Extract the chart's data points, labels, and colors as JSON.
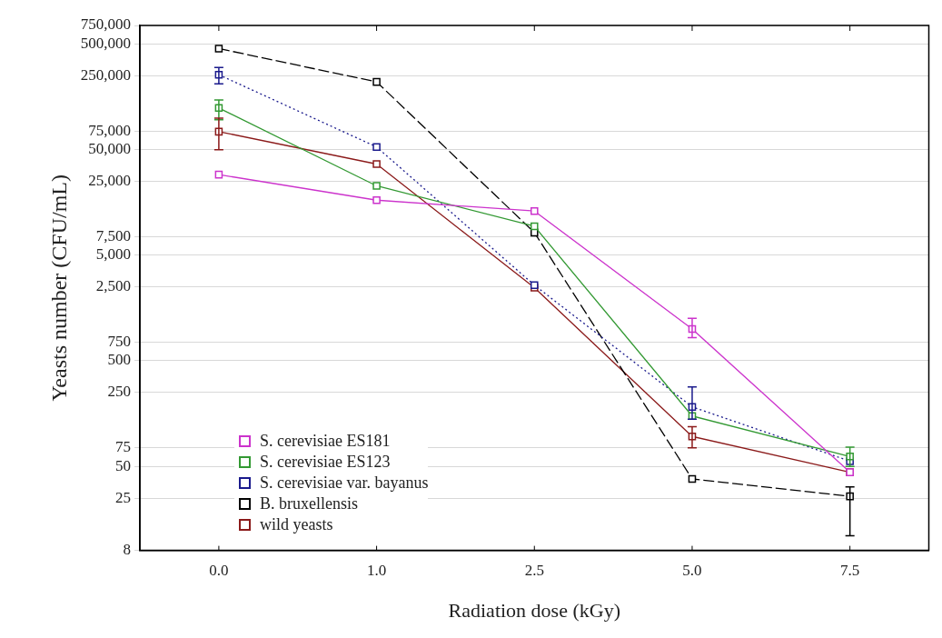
{
  "chart_data": {
    "type": "line",
    "xlabel": "Radiation dose (kGy)",
    "ylabel": "Yeasts number (CFU/mL)",
    "categories": [
      "0.0",
      "1.0",
      "2.5",
      "5.0",
      "7.5"
    ],
    "log": "y",
    "ylim": [
      8,
      750000
    ],
    "yticks": [
      {
        "value": 8,
        "label": "8"
      },
      {
        "value": 25,
        "label": "25"
      },
      {
        "value": 50,
        "label": "50"
      },
      {
        "value": 75,
        "label": "75"
      },
      {
        "value": 250,
        "label": "250"
      },
      {
        "value": 500,
        "label": "500"
      },
      {
        "value": 750,
        "label": "750"
      },
      {
        "value": 2500,
        "label": "2,500"
      },
      {
        "value": 5000,
        "label": "5,000"
      },
      {
        "value": 7500,
        "label": "7,500"
      },
      {
        "value": 25000,
        "label": "25,000"
      },
      {
        "value": 50000,
        "label": "50,000"
      },
      {
        "value": 75000,
        "label": "75,000"
      },
      {
        "value": 250000,
        "label": "250,000"
      },
      {
        "value": 500000,
        "label": "500,000"
      },
      {
        "value": 750000,
        "label": "750,000"
      }
    ],
    "grid": "y",
    "legend": "bottom left",
    "marker": "square",
    "series": [
      {
        "name": "S. cerevisiae ES181",
        "color": "#cc33cc",
        "line_style": "solid",
        "values": [
          29000,
          16600,
          13100,
          1000,
          44
        ],
        "errors": [
          null,
          null,
          null,
          [
            830,
            1260
          ],
          null
        ]
      },
      {
        "name": "S. cerevisiae ES123",
        "color": "#339933",
        "line_style": "solid",
        "values": [
          124000,
          22700,
          9400,
          150,
          62
        ],
        "errors": [
          [
            96000,
            148000
          ],
          null,
          null,
          null,
          [
            50,
            76
          ]
        ]
      },
      {
        "name": "S. cerevisiae var. bayanus",
        "color": "#1a1a8c",
        "line_style": "dotted",
        "values": [
          256000,
          53000,
          2600,
          183,
          56
        ],
        "errors": [
          [
            210000,
            300000
          ],
          null,
          null,
          [
            140,
            283
          ],
          null
        ]
      },
      {
        "name": "B. bruxellensis",
        "color": "#000000",
        "line_style": "dashed",
        "values": [
          453000,
          219000,
          8200,
          38,
          26
        ],
        "errors": [
          null,
          null,
          null,
          null,
          [
            11,
            32
          ]
        ]
      },
      {
        "name": "wild yeasts",
        "color": "#8b1a1a",
        "line_style": "solid",
        "values": [
          74000,
          36500,
          2460,
          96,
          44
        ],
        "errors": [
          [
            50000,
            99500
          ],
          null,
          null,
          [
            75,
            119
          ],
          null
        ]
      }
    ]
  }
}
